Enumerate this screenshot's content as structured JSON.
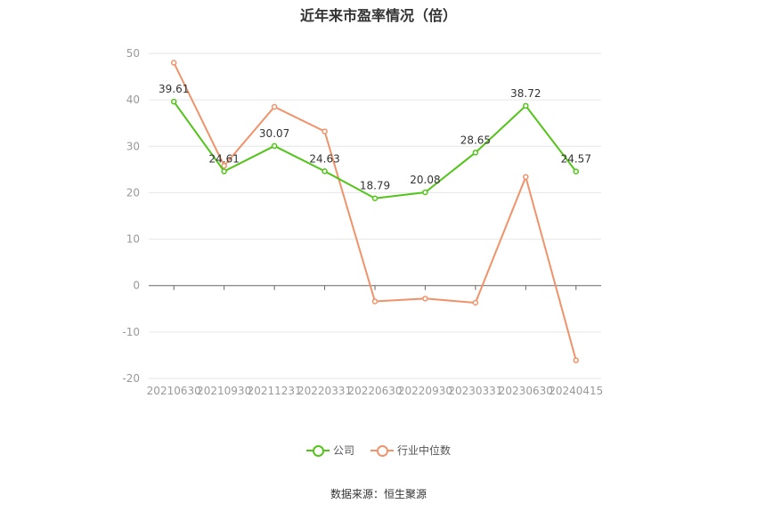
{
  "chart_data": {
    "type": "line",
    "title": "近年来市盈率情况（倍）",
    "categories": [
      "20210630",
      "20210930",
      "20211231",
      "20220331",
      "20220630",
      "20220930",
      "20230331",
      "20230630",
      "20240415"
    ],
    "ylim": [
      -20,
      50
    ],
    "yticks": [
      50,
      40,
      30,
      20,
      10,
      0,
      -10,
      -20
    ],
    "grid": true,
    "legend_position": "bottom",
    "series": [
      {
        "name": "公司",
        "color": "#52c41a",
        "values": [
          39.61,
          24.61,
          30.07,
          24.63,
          18.79,
          20.08,
          28.65,
          38.72,
          24.57
        ],
        "labels": [
          "39.61",
          "24.61",
          "30.07",
          "24.63",
          "18.79",
          "20.08",
          "28.65",
          "38.72",
          "24.57"
        ]
      },
      {
        "name": "行业中位数",
        "color": "#f0936a",
        "values": [
          48.0,
          25.8,
          38.5,
          33.2,
          -3.4,
          -2.8,
          -3.7,
          23.4,
          -16.1
        ]
      }
    ]
  },
  "source": "数据来源：恒生聚源"
}
